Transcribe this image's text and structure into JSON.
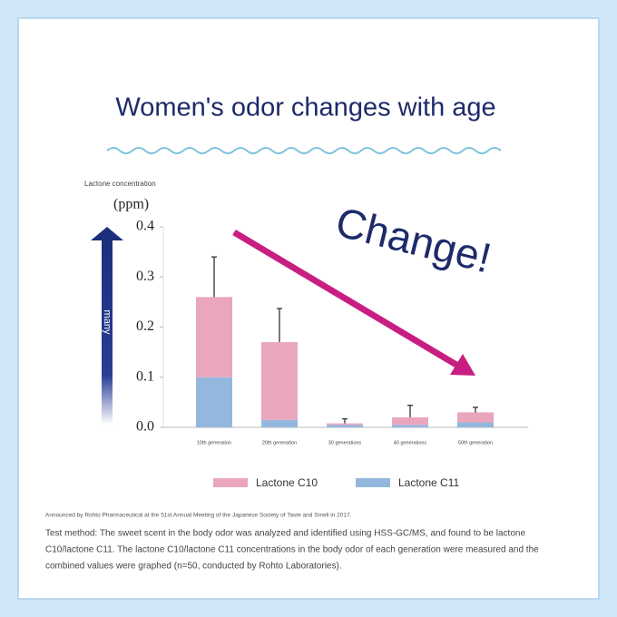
{
  "chart_data": {
    "type": "stacked-bar",
    "title": "Women's odor changes with age",
    "y_axis_caption": "Lactone concentration",
    "y_unit": "(ppm)",
    "annotation": "Change!",
    "arrow_label": "many",
    "categories": [
      "10th generation",
      "20th generation",
      "30 generations",
      "40 generations",
      "50th generation"
    ],
    "series": [
      {
        "name": "Lactone C10",
        "color": "#eaa6bd",
        "values": [
          0.16,
          0.155,
          0.003,
          0.015,
          0.02
        ],
        "errors": [
          0.08,
          0.067,
          0.009,
          0.024,
          0.01
        ]
      },
      {
        "name": "Lactone C11",
        "color": "#94b8dd",
        "values": [
          0.1,
          0.015,
          0.005,
          0.005,
          0.01
        ]
      }
    ],
    "ylim": [
      0,
      0.4
    ],
    "yticks": [
      {
        "value": 0,
        "label": "0.0"
      },
      0.1,
      0.2,
      0.3,
      0.4
    ],
    "source_note": "Announced by Rohto Pharmaceutical at the 51st Annual Meeting of the Japanese Society of Taste and Smell in 2017.",
    "method_lines": [
      "Test method: The sweet scent in the body odor was analyzed and identified using HSS-GC/MS, and found to be lactone",
      "C10/lactone C11. The lactone C10/lactone C11 concentrations in the body odor of each generation were measured and the",
      "combined values were graphed (n=50, conducted by Rohto Laboratories)."
    ]
  }
}
